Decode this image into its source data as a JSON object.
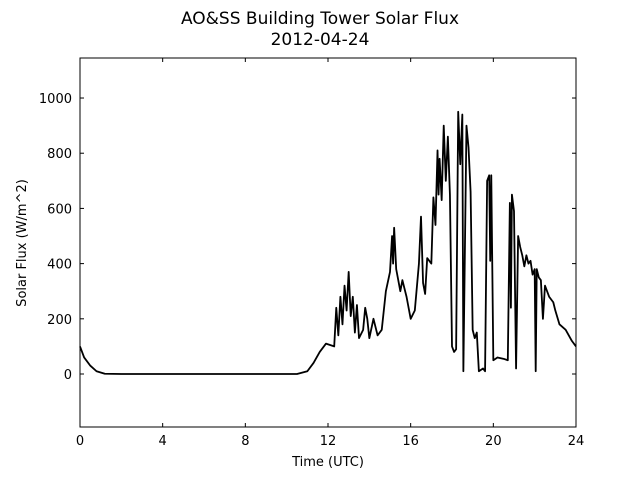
{
  "chart_data": {
    "type": "line",
    "title": "AO&SS Building Tower Solar Flux",
    "subtitle": "2012-04-24",
    "xlabel": "Time (UTC)",
    "ylabel": "Solar Flux (W/m^2)",
    "x": [
      0,
      0.2,
      0.5,
      0.8,
      1.2,
      2,
      10.5,
      11,
      11.3,
      11.6,
      11.9,
      12.1,
      12.3,
      12.4,
      12.5,
      12.6,
      12.7,
      12.8,
      12.9,
      13.0,
      13.1,
      13.2,
      13.3,
      13.4,
      13.5,
      13.7,
      13.8,
      13.9,
      14.0,
      14.2,
      14.4,
      14.6,
      14.8,
      15.0,
      15.1,
      15.15,
      15.2,
      15.3,
      15.5,
      15.6,
      15.8,
      16.0,
      16.2,
      16.4,
      16.5,
      16.6,
      16.7,
      16.8,
      17.0,
      17.1,
      17.2,
      17.3,
      17.35,
      17.4,
      17.5,
      17.6,
      17.7,
      17.8,
      17.9,
      18.0,
      18.1,
      18.2,
      18.3,
      18.4,
      18.5,
      18.55,
      18.7,
      18.8,
      18.9,
      19.0,
      19.1,
      19.2,
      19.3,
      19.5,
      19.6,
      19.7,
      19.8,
      19.85,
      19.9,
      20.0,
      20.2,
      20.5,
      20.7,
      20.8,
      20.85,
      20.9,
      21.0,
      21.1,
      21.2,
      21.3,
      21.4,
      21.5,
      21.6,
      21.7,
      21.8,
      21.9,
      22.0,
      22.05,
      22.1,
      22.2,
      22.3,
      22.4,
      22.5,
      22.7,
      22.9,
      23.0,
      23.2,
      23.5,
      23.8,
      24
    ],
    "series": [
      {
        "name": "Solar Flux",
        "color": "#000000",
        "values": [
          100,
          60,
          30,
          10,
          1,
          0,
          0,
          10,
          40,
          80,
          110,
          105,
          100,
          240,
          140,
          280,
          180,
          320,
          230,
          370,
          210,
          280,
          150,
          250,
          130,
          160,
          240,
          200,
          130,
          200,
          140,
          160,
          300,
          370,
          500,
          400,
          530,
          380,
          300,
          340,
          280,
          200,
          230,
          400,
          570,
          330,
          290,
          420,
          400,
          640,
          540,
          810,
          650,
          780,
          630,
          900,
          700,
          860,
          650,
          100,
          80,
          90,
          950,
          760,
          940,
          10,
          900,
          820,
          660,
          160,
          130,
          150,
          10,
          20,
          10,
          700,
          720,
          410,
          720,
          50,
          60,
          55,
          50,
          620,
          240,
          650,
          590,
          20,
          500,
          460,
          430,
          390,
          430,
          400,
          410,
          360,
          380,
          10,
          380,
          350,
          340,
          200,
          320,
          280,
          260,
          230,
          180,
          160,
          120,
          100
        ]
      }
    ],
    "xlim": [
      0,
      24
    ],
    "xticks": [
      0,
      4,
      8,
      12,
      16,
      20,
      24
    ],
    "ylim": [
      -192,
      1145
    ],
    "yticks": [
      0,
      200,
      400,
      600,
      800,
      1000
    ]
  }
}
